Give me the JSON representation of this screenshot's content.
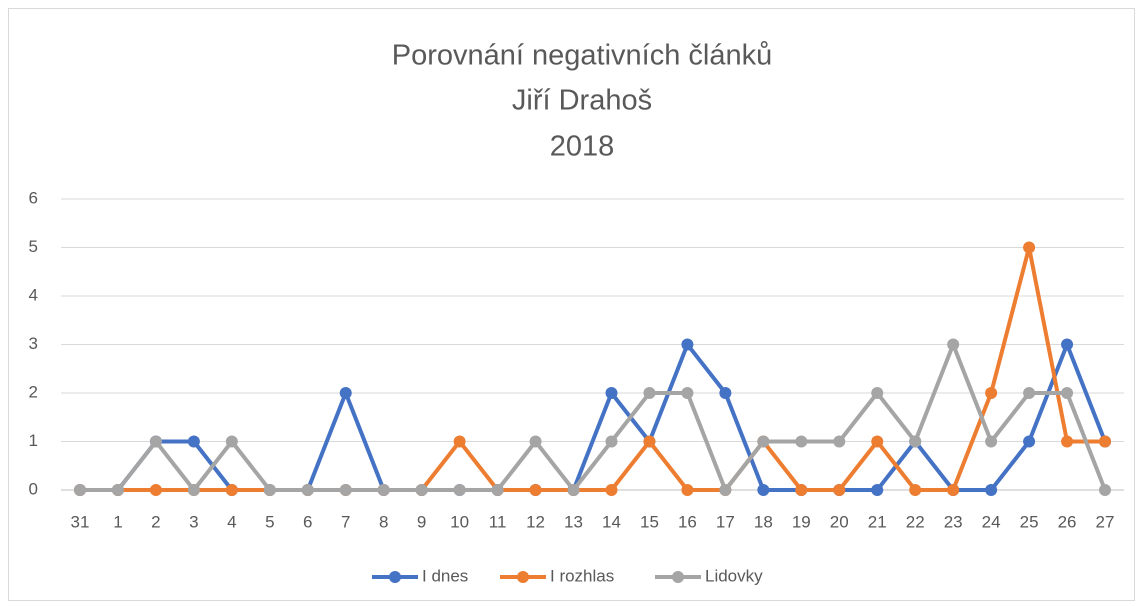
{
  "chart_data": {
    "type": "line",
    "title": [
      "Porovnání negativních článků",
      "Jiří Drahoš",
      "2018"
    ],
    "categories": [
      "31",
      "1",
      "2",
      "3",
      "4",
      "5",
      "6",
      "7",
      "8",
      "9",
      "10",
      "11",
      "12",
      "13",
      "14",
      "15",
      "16",
      "17",
      "18",
      "19",
      "20",
      "21",
      "22",
      "23",
      "24",
      "25",
      "26",
      "27"
    ],
    "series": [
      {
        "name": "I dnes",
        "color": "#4472c4",
        "values": [
          0,
          0,
          1,
          1,
          0,
          0,
          0,
          2,
          0,
          0,
          0,
          0,
          0,
          0,
          2,
          1,
          3,
          2,
          0,
          0,
          0,
          0,
          1,
          0,
          0,
          1,
          3,
          1
        ]
      },
      {
        "name": "I rozhlas",
        "color": "#ed7d31",
        "values": [
          0,
          0,
          0,
          0,
          0,
          0,
          0,
          0,
          0,
          0,
          1,
          0,
          0,
          0,
          0,
          1,
          0,
          0,
          1,
          0,
          0,
          1,
          0,
          0,
          2,
          5,
          1,
          1
        ]
      },
      {
        "name": "Lidovky",
        "color": "#a5a5a5",
        "values": [
          0,
          0,
          1,
          0,
          1,
          0,
          0,
          0,
          0,
          0,
          0,
          0,
          1,
          0,
          1,
          2,
          2,
          0,
          1,
          1,
          1,
          2,
          1,
          3,
          1,
          2,
          2,
          0
        ]
      }
    ],
    "ylim": [
      0,
      6
    ],
    "yticks": [
      0,
      1,
      2,
      3,
      4,
      5,
      6
    ],
    "grid": true,
    "legend": "bottom"
  }
}
